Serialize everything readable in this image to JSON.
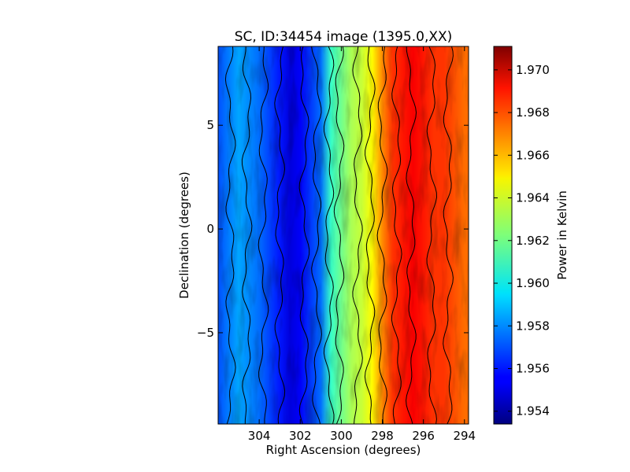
{
  "chart_data": {
    "type": "heatmap",
    "title": "SC, ID:34454 image (1395.0,XX)",
    "xlabel": "Right Ascension (degrees)",
    "ylabel": "Declination (degrees)",
    "colorbar_label": "Power in Kelvin",
    "xlim": [
      306.0,
      293.8
    ],
    "ylim": [
      -9.4,
      8.8
    ],
    "x_ticks": [
      304,
      302,
      300,
      298,
      296,
      294
    ],
    "x_tick_labels": [
      "304",
      "302",
      "300",
      "298",
      "296",
      "294"
    ],
    "y_ticks": [
      5,
      0,
      -5
    ],
    "y_tick_labels": [
      "5",
      "0",
      "−5"
    ],
    "colorbar_range": [
      1.9534,
      1.9711
    ],
    "colorbar_ticks": [
      1.954,
      1.956,
      1.958,
      1.96,
      1.962,
      1.964,
      1.966,
      1.968,
      1.97
    ],
    "colorbar_tick_labels": [
      "1.954",
      "1.956",
      "1.958",
      "1.960",
      "1.962",
      "1.964",
      "1.966",
      "1.968",
      "1.970"
    ],
    "colormap": "jet",
    "contours": "black",
    "ra_profile": {
      "ra": [
        306.0,
        305.0,
        304.0,
        303.0,
        302.5,
        302.0,
        301.0,
        300.5,
        300.0,
        299.5,
        299.0,
        298.5,
        298.0,
        297.5,
        297.0,
        296.5,
        296.0,
        295.5,
        295.0,
        294.5,
        294.0,
        293.8
      ],
      "power": [
        1.957,
        1.9585,
        1.9575,
        1.956,
        1.955,
        1.9555,
        1.9575,
        1.961,
        1.962,
        1.963,
        1.9635,
        1.9645,
        1.9665,
        1.968,
        1.9685,
        1.969,
        1.9685,
        1.968,
        1.968,
        1.9675,
        1.967,
        1.967
      ]
    }
  }
}
